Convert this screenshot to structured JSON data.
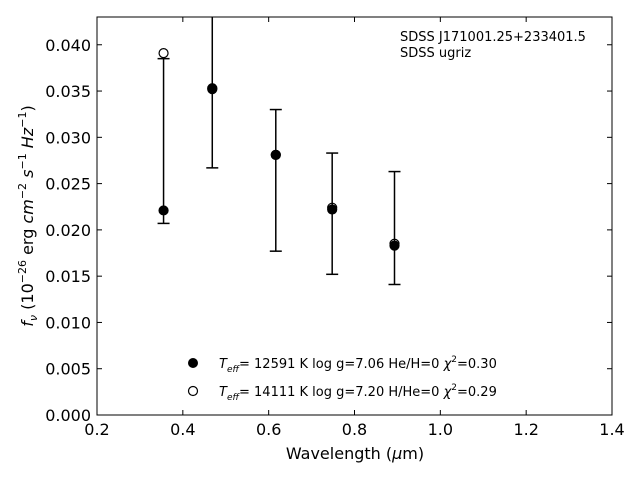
{
  "chart_data": {
    "type": "scatter",
    "xlabel": "Wavelength (μm)",
    "ylabel": "fν (10⁻²⁶ erg cm⁻² s⁻¹ Hz⁻¹)",
    "xlim": [
      0.2,
      1.4
    ],
    "ylim": [
      0.0,
      0.043
    ],
    "xticks": [
      "0.2",
      "0.4",
      "0.6",
      "0.8",
      "1.0",
      "1.2",
      "1.4"
    ],
    "yticks": [
      "0.000",
      "0.005",
      "0.010",
      "0.015",
      "0.020",
      "0.025",
      "0.030",
      "0.035",
      "0.040"
    ],
    "grid": false,
    "annotation": [
      "SDSS J171001.25+233401.5",
      "SDSS ugriz"
    ],
    "observed": {
      "name": "SDSS ugriz",
      "x": [
        0.3551,
        0.4686,
        0.6166,
        0.748,
        0.8932
      ],
      "y": [
        0.0222,
        0.0354,
        0.0282,
        0.0223,
        0.0184
      ],
      "yerr_low": [
        0.0207,
        0.0267,
        0.0177,
        0.0152,
        0.0141
      ],
      "yerr_high": [
        0.0385,
        0.0435,
        0.033,
        0.0283,
        0.0263
      ]
    },
    "series": [
      {
        "name": "Teff= 12591 K  log g=7.06  He/H=0  χ²=0.30",
        "marker": "filled-circle",
        "x": [
          0.3551,
          0.4686,
          0.6166,
          0.748,
          0.8932
        ],
        "y": [
          0.0221,
          0.0353,
          0.0281,
          0.0222,
          0.0183
        ]
      },
      {
        "name": "Teff= 14111 K  log g=7.20  H/He=0  χ²=0.29",
        "marker": "open-circle",
        "x": [
          0.3551,
          0.4686,
          0.6166,
          0.748,
          0.8932
        ],
        "y": [
          0.0391,
          0.0352,
          0.0281,
          0.0224,
          0.0185
        ]
      }
    ],
    "legend_position": "bottom-center"
  }
}
